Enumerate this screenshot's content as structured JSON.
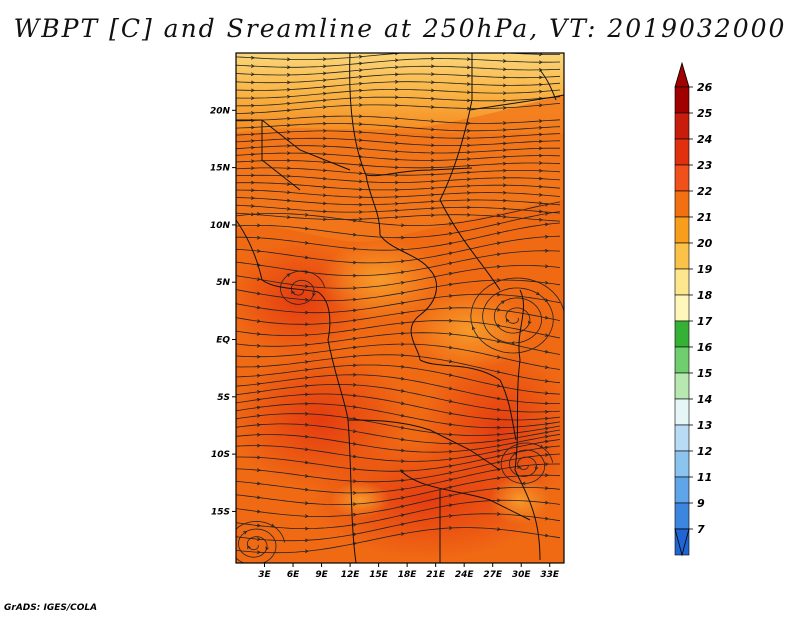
{
  "title": "WBPT [C] and Sreamline at 250hPa, VT: 2019032000",
  "credit": "GrADS: IGES/COLA",
  "map": {
    "lat_labels": [
      "20N",
      "15N",
      "10N",
      "5N",
      "EQ",
      "5S",
      "10S",
      "15S"
    ],
    "lat_values": [
      20,
      15,
      10,
      5,
      0,
      -5,
      -10,
      -15
    ],
    "lon_labels": [
      "3E",
      "6E",
      "9E",
      "12E",
      "15E",
      "18E",
      "21E",
      "24E",
      "27E",
      "30E",
      "33E"
    ],
    "lon_values": [
      3,
      6,
      9,
      12,
      15,
      18,
      21,
      24,
      27,
      30,
      33
    ],
    "lat_range": [
      -19.5,
      25
    ],
    "lon_range": [
      0,
      34.5
    ],
    "dominant_field_color": "#f06a14",
    "warm_band_color": "#fbb845"
  },
  "colorbar": {
    "labels": [
      "26",
      "25",
      "24",
      "23",
      "22",
      "21",
      "20",
      "19",
      "18",
      "17",
      "16",
      "15",
      "14",
      "13",
      "12",
      "11",
      "9",
      "7"
    ],
    "colors": [
      "#a00000",
      "#c81c0c",
      "#e0300e",
      "#f0501a",
      "#f37012",
      "#f89d1c",
      "#fbc24a",
      "#fde68e",
      "#fff6bc",
      "#35b235",
      "#6fcf6f",
      "#b6e8b0",
      "#e6f6f6",
      "#b8dcf6",
      "#8cc4f0",
      "#5ea5ea",
      "#3c86e0",
      "#1f66d4"
    ],
    "top_arrow_color": "#a00000",
    "bottom_arrow_color": "#1f66d4"
  }
}
